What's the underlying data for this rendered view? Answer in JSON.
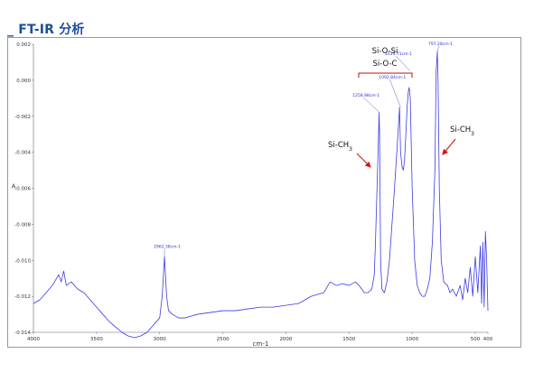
{
  "page": {
    "title": "_ FT-IR 分析"
  },
  "chart_data": {
    "type": "line",
    "xlabel": "cm-1",
    "ylabel": "A",
    "xlim": [
      4000,
      400
    ],
    "ylim": [
      -0.014,
      0.002
    ],
    "x_reversed": true,
    "x_ticks": [
      4000,
      3500,
      3000,
      2500,
      2000,
      1500,
      1000,
      500,
      400
    ],
    "y_ticks": [
      0.002,
      0.0,
      -0.002,
      -0.004,
      -0.006,
      -0.008,
      -0.01,
      -0.012,
      -0.014
    ],
    "y_tick_labels": [
      "0.002",
      "0.000",
      "-0.002",
      "-0.004",
      "-0.006",
      "-0.008",
      "-0.010",
      "-0.012",
      "-0.014"
    ],
    "line_color": "#3b3be6",
    "series": [
      {
        "x": [
          4000,
          3950,
          3900,
          3850,
          3800,
          3780,
          3760,
          3740,
          3700,
          3650,
          3600,
          3550,
          3500,
          3450,
          3400,
          3350,
          3300,
          3250,
          3200,
          3150,
          3100,
          3050,
          3000,
          2980,
          2962,
          2945,
          2930,
          2900,
          2850,
          2800,
          2700,
          2600,
          2500,
          2400,
          2300,
          2200,
          2100,
          2000,
          1900,
          1800,
          1700,
          1650,
          1600,
          1550,
          1500,
          1450,
          1420,
          1400,
          1380,
          1350,
          1320,
          1300,
          1290,
          1270,
          1262,
          1258,
          1250,
          1240,
          1220,
          1200,
          1180,
          1160,
          1140,
          1120,
          1100,
          1092,
          1080,
          1070,
          1060,
          1050,
          1040,
          1030,
          1024,
          1015,
          1000,
          980,
          960,
          940,
          920,
          900,
          880,
          860,
          840,
          820,
          810,
          801,
          795,
          785,
          770,
          750,
          720,
          700,
          680,
          650,
          620,
          600,
          580,
          560,
          540,
          520,
          500,
          480,
          460,
          450,
          440,
          430,
          420,
          410,
          400
        ],
        "y": [
          -0.0124,
          -0.0122,
          -0.0118,
          -0.0114,
          -0.0108,
          -0.0112,
          -0.0106,
          -0.0114,
          -0.0112,
          -0.0116,
          -0.0118,
          -0.0122,
          -0.0126,
          -0.013,
          -0.0134,
          -0.0137,
          -0.014,
          -0.0142,
          -0.0143,
          -0.0142,
          -0.014,
          -0.0136,
          -0.0132,
          -0.012,
          -0.0098,
          -0.012,
          -0.0128,
          -0.013,
          -0.0132,
          -0.0132,
          -0.013,
          -0.0129,
          -0.0128,
          -0.0128,
          -0.0127,
          -0.0126,
          -0.0126,
          -0.0125,
          -0.0124,
          -0.012,
          -0.0118,
          -0.0112,
          -0.0114,
          -0.0113,
          -0.0114,
          -0.0112,
          -0.0114,
          -0.0116,
          -0.0118,
          -0.0118,
          -0.0116,
          -0.0108,
          -0.0088,
          -0.004,
          -0.0018,
          -0.003,
          -0.01,
          -0.0116,
          -0.0118,
          -0.0112,
          -0.01,
          -0.008,
          -0.006,
          -0.0038,
          -0.0015,
          -0.004,
          -0.0048,
          -0.005,
          -0.0044,
          -0.003,
          -0.0015,
          -0.0006,
          -0.0004,
          -0.001,
          -0.006,
          -0.01,
          -0.0114,
          -0.0118,
          -0.012,
          -0.012,
          -0.0116,
          -0.011,
          -0.009,
          -0.005,
          0.0005,
          0.0016,
          0.0,
          -0.006,
          -0.01,
          -0.0112,
          -0.0114,
          -0.0118,
          -0.0116,
          -0.012,
          -0.0114,
          -0.0122,
          -0.011,
          -0.0118,
          -0.0104,
          -0.012,
          -0.0098,
          -0.0118,
          -0.0092,
          -0.0124,
          -0.009,
          -0.0126,
          -0.0084,
          -0.01,
          -0.0128
        ]
      }
    ],
    "peak_labels": [
      {
        "x": 2962,
        "y": -0.0098,
        "text": "2962.38cm-1"
      },
      {
        "x": 1258,
        "y": -0.0018,
        "text": "1258.98cm-1"
      },
      {
        "x": 1092,
        "y": -0.0015,
        "text": "1092.84cm-1"
      },
      {
        "x": 1015,
        "y": 0.0005,
        "text": "1015.71cm-1"
      },
      {
        "x": 801,
        "y": 0.0016,
        "text": "797.28cm-1"
      }
    ],
    "annotations": [
      {
        "text": "Si-O-Si"
      },
      {
        "text": "Si-O-C"
      },
      {
        "text": "Si-CH",
        "sub": "3"
      },
      {
        "text": "Si-CH",
        "sub": "3"
      }
    ]
  }
}
